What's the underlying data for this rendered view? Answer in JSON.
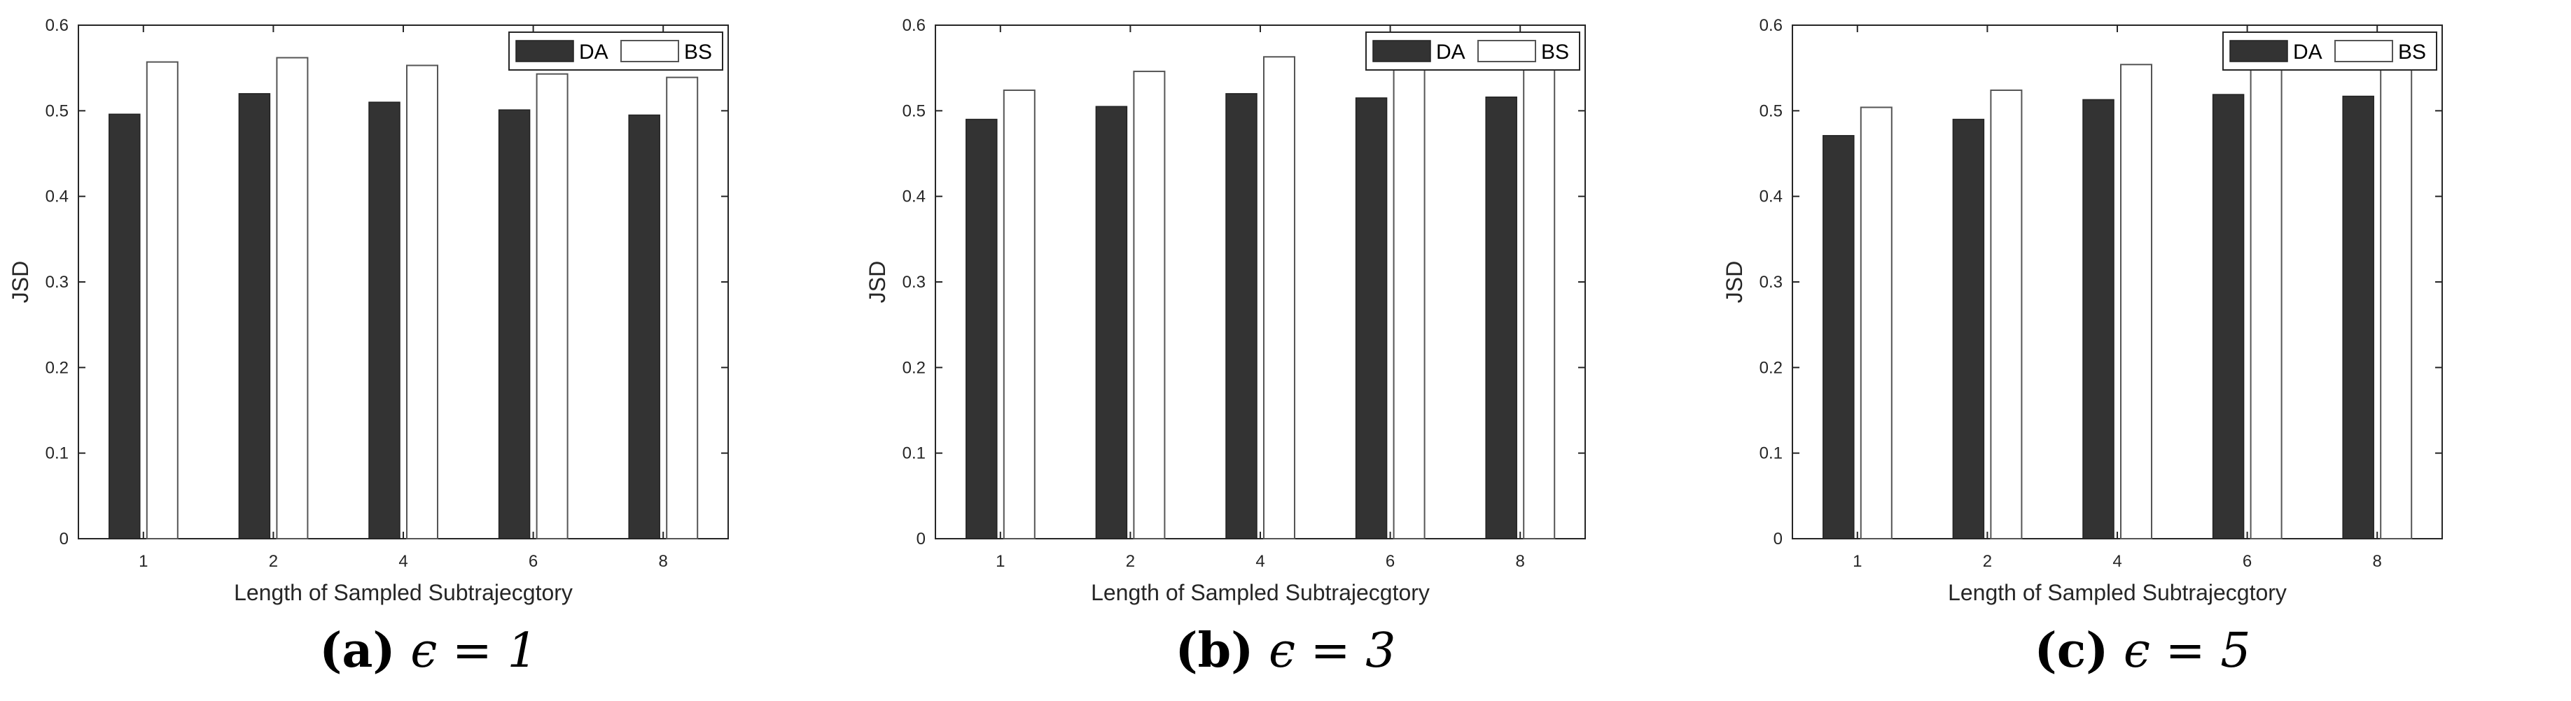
{
  "colors": {
    "DA": "#333333",
    "BS": "#ffffff",
    "axis": "#262626",
    "bs_stroke": "#555555"
  },
  "chart_data": [
    {
      "type": "bar",
      "caption_label": "(a)",
      "caption_eq": "ϵ = 1",
      "xlabel": "Length of Sampled Subtrajecgtory",
      "ylabel": "JSD",
      "categories": [
        "1",
        "2",
        "4",
        "6",
        "8"
      ],
      "ylim": [
        0,
        0.6
      ],
      "yticks": [
        "0",
        "0.1",
        "0.2",
        "0.3",
        "0.4",
        "0.5",
        "0.6"
      ],
      "legend_position": "top-right",
      "grid": false,
      "series": [
        {
          "name": "DA",
          "values": [
            0.496,
            0.52,
            0.51,
            0.501,
            0.495
          ]
        },
        {
          "name": "BS",
          "values": [
            0.557,
            0.562,
            0.553,
            0.543,
            0.539
          ]
        }
      ]
    },
    {
      "type": "bar",
      "caption_label": "(b)",
      "caption_eq": "ϵ = 3",
      "xlabel": "Length of Sampled Subtrajecgtory",
      "ylabel": "JSD",
      "categories": [
        "1",
        "2",
        "4",
        "6",
        "8"
      ],
      "ylim": [
        0,
        0.6
      ],
      "yticks": [
        "0",
        "0.1",
        "0.2",
        "0.3",
        "0.4",
        "0.5",
        "0.6"
      ],
      "legend_position": "top-right",
      "grid": false,
      "series": [
        {
          "name": "DA",
          "values": [
            0.49,
            0.505,
            0.52,
            0.515,
            0.516
          ]
        },
        {
          "name": "BS",
          "values": [
            0.524,
            0.546,
            0.563,
            0.559,
            0.559
          ]
        }
      ]
    },
    {
      "type": "bar",
      "caption_label": "(c)",
      "caption_eq": "ϵ = 5",
      "xlabel": "Length of Sampled Subtrajecgtory",
      "ylabel": "JSD",
      "categories": [
        "1",
        "2",
        "4",
        "6",
        "8"
      ],
      "ylim": [
        0,
        0.6
      ],
      "yticks": [
        "0",
        "0.1",
        "0.2",
        "0.3",
        "0.4",
        "0.5",
        "0.6"
      ],
      "legend_position": "top-right",
      "grid": false,
      "series": [
        {
          "name": "DA",
          "values": [
            0.471,
            0.49,
            0.513,
            0.519,
            0.517
          ]
        },
        {
          "name": "BS",
          "values": [
            0.504,
            0.524,
            0.554,
            0.563,
            0.561
          ]
        }
      ]
    }
  ]
}
